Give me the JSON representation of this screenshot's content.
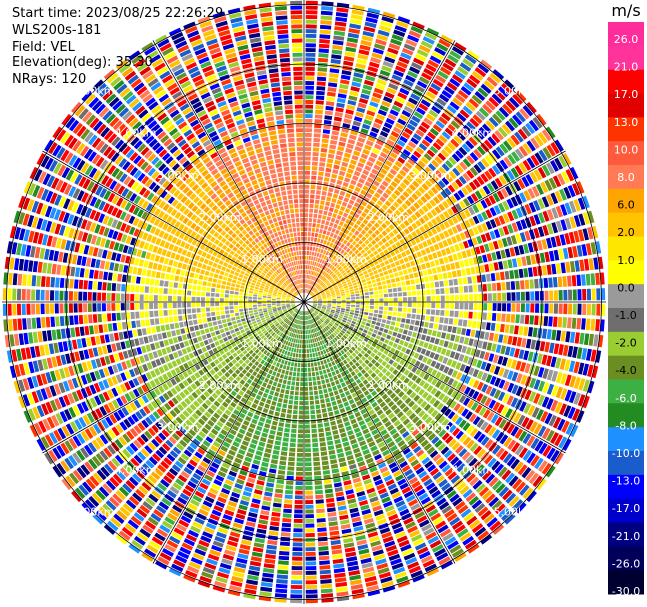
{
  "info": {
    "start_time": "Start time: 2023/08/25 22:26:29",
    "device": "WLS200s-181",
    "field": "Field: VEL",
    "elevation": "Elevation(deg): 35.30",
    "nrays": "NRays: 120"
  },
  "colorbar": {
    "unit": "m/s",
    "colors": [
      "#ff2d9b",
      "#ff3399",
      "#ff0000",
      "#e00000",
      "#ff3300",
      "#ff5a3c",
      "#ff7a55",
      "#ffa500",
      "#ffc300",
      "#ffe600",
      "#ffff00",
      "#9a9a9a",
      "#6e6e6e",
      "#9acd32",
      "#6b8e23",
      "#3cb043",
      "#228b22",
      "#1e90ff",
      "#1a5ccc",
      "#0000ff",
      "#0000cd",
      "#000080",
      "#00005a",
      "#000030"
    ],
    "labels": [
      "26.0",
      "21.0",
      "17.0",
      "13.0",
      "10.0",
      "8.0",
      "6.0",
      "2.0",
      "1.0",
      "0.0",
      "-1.0",
      "-2.0",
      "-4.0",
      "-6.0",
      "-8.0",
      "-10.0",
      "-13.0",
      "-17.0",
      "-21.0",
      "-26.0",
      "-30.0"
    ]
  },
  "chart_data": {
    "type": "heatmap",
    "projection": "polar-ppi",
    "field": "VEL",
    "units": "m/s",
    "n_rays": 120,
    "elevation_deg": 35.3,
    "ring_labels": [
      "1.00km",
      "2.00km",
      "3.00km",
      "4.00km",
      "5.00km"
    ],
    "value_range": [
      -30.0,
      26.0
    ],
    "pattern": {
      "valid_max_range_km": 3.0,
      "north_sector_mean_ms": 9.0,
      "south_sector_mean_ms": -6.0,
      "noise_beyond_km": 3.0
    }
  }
}
